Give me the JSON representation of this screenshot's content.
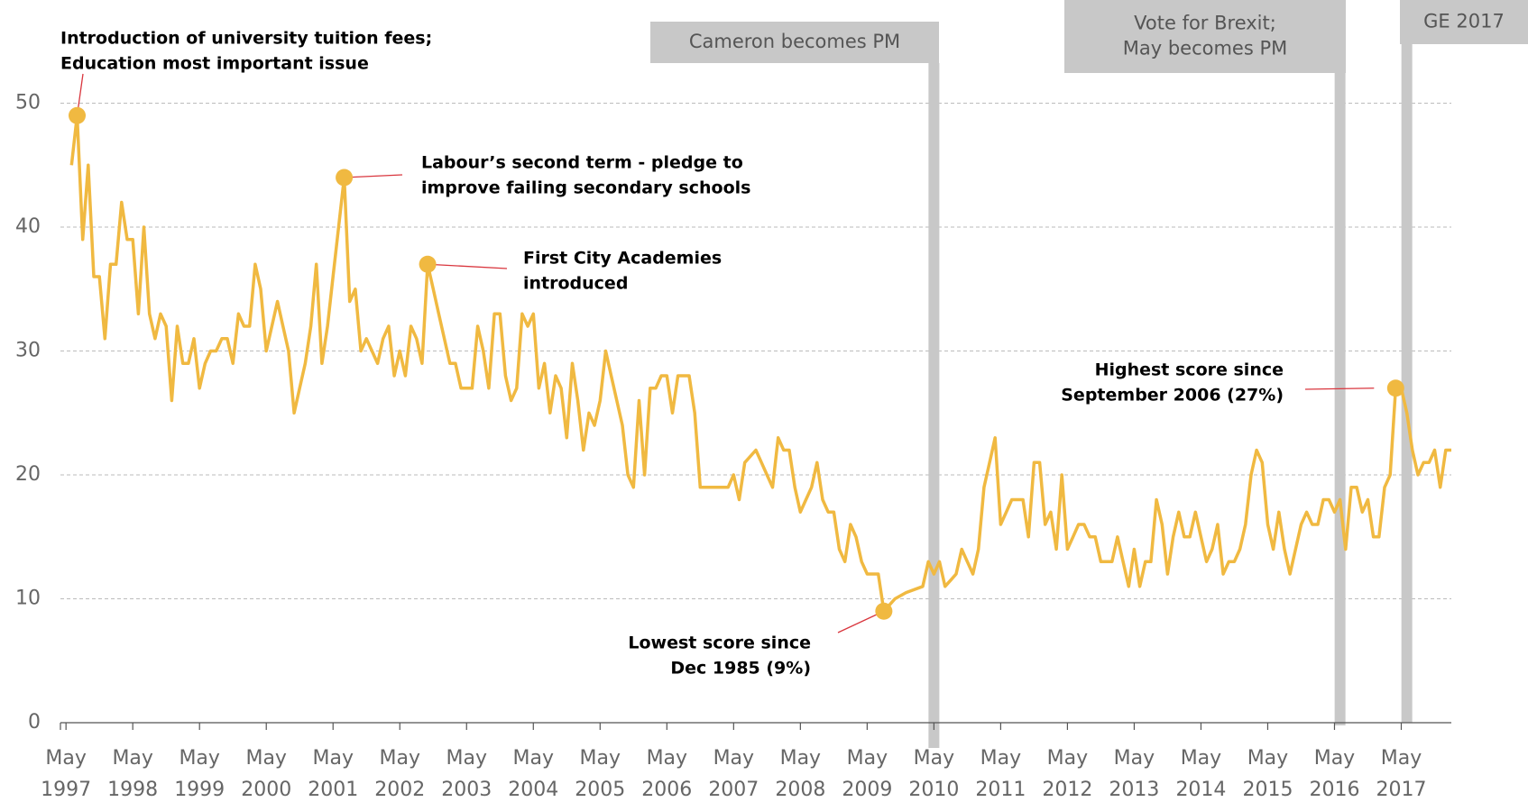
{
  "chart_data": {
    "type": "line",
    "color": "#f0b941",
    "xlim": [
      "1997-04",
      "2018-02"
    ],
    "ylim": [
      0,
      50
    ],
    "yticks": [
      0,
      10,
      20,
      30,
      40,
      50
    ],
    "grid": true,
    "xticks": [
      {
        "value": "1997-05",
        "label": [
          "May",
          "1997"
        ]
      },
      {
        "value": "1998-05",
        "label": [
          "May",
          "1998"
        ]
      },
      {
        "value": "1999-05",
        "label": [
          "May",
          "1999"
        ]
      },
      {
        "value": "2000-05",
        "label": [
          "May",
          "2000"
        ]
      },
      {
        "value": "2001-05",
        "label": [
          "May",
          "2001"
        ]
      },
      {
        "value": "2002-05",
        "label": [
          "May",
          "2002"
        ]
      },
      {
        "value": "2003-05",
        "label": [
          "May",
          "2003"
        ]
      },
      {
        "value": "2004-05",
        "label": [
          "May",
          "2004"
        ]
      },
      {
        "value": "2005-05",
        "label": [
          "May",
          "2005"
        ]
      },
      {
        "value": "2006-05",
        "label": [
          "May",
          "2006"
        ]
      },
      {
        "value": "2007-05",
        "label": [
          "May",
          "2007"
        ]
      },
      {
        "value": "2008-05",
        "label": [
          "May",
          "2008"
        ]
      },
      {
        "value": "2009-05",
        "label": [
          "May",
          "2009"
        ]
      },
      {
        "value": "2010-05",
        "label": [
          "May",
          "2010"
        ]
      },
      {
        "value": "2011-05",
        "label": [
          "May",
          "2011"
        ]
      },
      {
        "value": "2012-05",
        "label": [
          "May",
          "2012"
        ]
      },
      {
        "value": "2013-05",
        "label": [
          "May",
          "2013"
        ]
      },
      {
        "value": "2014-05",
        "label": [
          "May",
          "2014"
        ]
      },
      {
        "value": "2015-05",
        "label": [
          "May",
          "2015"
        ]
      },
      {
        "value": "2016-05",
        "label": [
          "May",
          "2016"
        ]
      },
      {
        "value": "2017-05",
        "label": [
          "May",
          "2017"
        ]
      }
    ],
    "x": [
      "1997-06",
      "1997-07",
      "1997-08",
      "1997-09",
      "1997-10",
      "1997-11",
      "1997-12",
      "1998-01",
      "1998-02",
      "1998-03",
      "1998-04",
      "1998-05",
      "1998-06",
      "1998-07",
      "1998-08",
      "1998-09",
      "1998-10",
      "1998-11",
      "1998-12",
      "1999-01",
      "1999-02",
      "1999-03",
      "1999-04",
      "1999-05",
      "1999-06",
      "1999-07",
      "1999-08",
      "1999-09",
      "1999-10",
      "1999-11",
      "1999-12",
      "2000-01",
      "2000-02",
      "2000-03",
      "2000-04",
      "2000-05",
      "2000-06",
      "2000-07",
      "2000-08",
      "2000-09",
      "2000-10",
      "2000-11",
      "2000-12",
      "2001-01",
      "2001-02",
      "2001-03",
      "2001-04",
      "2001-05",
      "2001-06",
      "2001-07",
      "2001-08",
      "2001-09",
      "2001-10",
      "2001-11",
      "2001-12",
      "2002-01",
      "2002-02",
      "2002-03",
      "2002-04",
      "2002-05",
      "2002-06",
      "2002-07",
      "2002-08",
      "2002-09",
      "2002-10",
      "2002-11",
      "2002-12",
      "2003-01",
      "2003-02",
      "2003-03",
      "2003-04",
      "2003-05",
      "2003-06",
      "2003-07",
      "2003-08",
      "2003-09",
      "2003-10",
      "2003-11",
      "2003-12",
      "2004-01",
      "2004-02",
      "2004-03",
      "2004-04",
      "2004-05",
      "2004-06",
      "2004-07",
      "2004-08",
      "2004-09",
      "2004-10",
      "2004-11",
      "2004-12",
      "2005-01",
      "2005-02",
      "2005-03",
      "2005-04",
      "2005-05",
      "2005-06",
      "2005-07",
      "2005-08",
      "2005-09",
      "2005-10",
      "2005-11",
      "2005-12",
      "2006-01",
      "2006-02",
      "2006-03",
      "2006-04",
      "2006-05",
      "2006-06",
      "2006-07",
      "2006-08",
      "2006-09",
      "2006-10",
      "2006-11",
      "2006-12",
      "2007-04",
      "2007-05",
      "2007-06",
      "2007-07",
      "2007-09",
      "2007-10",
      "2007-11",
      "2007-12",
      "2008-01",
      "2008-02",
      "2008-03",
      "2008-04",
      "2008-05",
      "2008-06",
      "2008-07",
      "2008-08",
      "2008-09",
      "2008-10",
      "2008-11",
      "2008-12",
      "2009-01",
      "2009-02",
      "2009-03",
      "2009-04",
      "2009-05",
      "2009-06",
      "2009-07",
      "2009-08",
      "2009-10",
      "2009-12",
      "2010-03",
      "2010-04",
      "2010-05",
      "2010-06",
      "2010-07",
      "2010-08",
      "2010-09",
      "2010-10",
      "2010-11",
      "2010-12",
      "2011-01",
      "2011-02",
      "2011-03",
      "2011-04",
      "2011-05",
      "2011-06",
      "2011-07",
      "2011-08",
      "2011-09",
      "2011-10",
      "2011-11",
      "2011-12",
      "2012-01",
      "2012-02",
      "2012-03",
      "2012-04",
      "2012-05",
      "2012-06",
      "2012-07",
      "2012-08",
      "2012-09",
      "2012-10",
      "2012-11",
      "2013-01",
      "2013-02",
      "2013-03",
      "2013-04",
      "2013-05",
      "2013-06",
      "2013-07",
      "2013-08",
      "2013-09",
      "2013-10",
      "2013-11",
      "2013-12",
      "2014-01",
      "2014-02",
      "2014-03",
      "2014-04",
      "2014-05",
      "2014-06",
      "2014-07",
      "2014-08",
      "2014-09",
      "2014-10",
      "2014-11",
      "2014-12",
      "2015-01",
      "2015-02",
      "2015-03",
      "2015-04",
      "2015-05",
      "2015-06",
      "2015-07",
      "2015-08",
      "2015-09",
      "2015-10",
      "2015-11",
      "2015-12",
      "2016-01",
      "2016-02",
      "2016-03",
      "2016-04",
      "2016-05",
      "2016-06",
      "2016-07",
      "2016-08",
      "2016-09",
      "2016-10",
      "2016-11",
      "2016-12",
      "2017-01",
      "2017-02",
      "2017-03",
      "2017-04",
      "2017-05",
      "2017-06",
      "2017-07",
      "2017-08",
      "2017-09",
      "2017-10",
      "2017-11",
      "2017-12",
      "2018-01",
      "2018-02"
    ],
    "values": [
      45,
      49,
      39,
      45,
      36,
      36,
      31,
      37,
      37,
      42,
      39,
      39,
      33,
      40,
      33,
      31,
      33,
      32,
      26,
      32,
      29,
      29,
      31,
      27,
      29,
      30,
      30,
      31,
      31,
      29,
      33,
      32,
      32,
      37,
      35,
      30,
      32,
      34,
      32,
      30,
      25,
      27,
      29,
      32,
      37,
      29,
      32,
      36,
      40,
      44,
      34,
      35,
      30,
      31,
      30,
      29,
      31,
      32,
      28,
      30,
      28,
      32,
      31,
      29,
      37,
      35,
      33,
      31,
      29,
      29,
      27,
      27,
      27,
      32,
      30,
      27,
      33,
      33,
      28,
      26,
      27,
      33,
      32,
      33,
      27,
      29,
      25,
      28,
      27,
      23,
      29,
      26,
      22,
      25,
      24,
      26,
      30,
      28,
      26,
      24,
      20,
      19,
      26,
      20,
      27,
      27,
      28,
      28,
      25,
      28,
      28,
      28,
      25,
      19,
      19,
      19,
      20,
      18,
      21,
      22,
      21,
      20,
      19,
      23,
      22,
      22,
      19,
      17,
      18,
      19,
      21,
      18,
      17,
      17,
      14,
      13,
      16,
      15,
      13,
      12,
      12,
      12,
      9,
      10,
      10.5,
      11,
      13,
      12,
      13,
      11,
      11.5,
      12,
      14,
      13,
      12,
      14,
      19,
      21,
      23,
      16,
      17,
      18,
      18,
      18,
      15,
      21,
      21,
      16,
      17,
      14,
      20,
      14,
      15,
      16,
      16,
      15,
      15,
      13,
      13,
      15,
      13,
      11,
      14,
      11,
      13,
      13,
      18,
      16,
      12,
      15,
      17,
      15,
      15,
      17,
      15,
      13,
      14,
      16,
      12,
      13,
      13,
      14,
      16,
      20,
      22,
      21,
      16,
      14,
      17,
      14,
      12,
      14,
      16,
      17,
      16,
      16,
      18,
      18,
      17,
      18,
      14,
      19,
      19,
      17,
      18,
      15,
      15,
      19,
      20,
      27,
      27,
      25,
      22,
      20,
      21,
      21,
      22,
      19,
      22,
      22
    ],
    "events": [
      {
        "x": "2010-05",
        "label": [
          "Cameron becomes PM"
        ]
      },
      {
        "x": "2016-06",
        "label": [
          "Vote for Brexit;",
          "May becomes PM"
        ]
      },
      {
        "x": "2017-06",
        "label": [
          "GE 2017"
        ]
      }
    ],
    "annotations": [
      {
        "x": "1997-07",
        "text": [
          "Introduction of university tuition fees;",
          "Education most important issue"
        ]
      },
      {
        "x": "2001-07",
        "text": [
          "Labour’s second term - pledge to",
          "improve failing secondary schools"
        ]
      },
      {
        "x": "2002-10",
        "text": [
          "First City Academies",
          "introduced"
        ]
      },
      {
        "x": "2009-08",
        "text": [
          "Lowest score since",
          "Dec 1985 (9%)"
        ]
      },
      {
        "x": "2017-04",
        "text": [
          "Highest score since",
          "September 2006 (27%)"
        ]
      }
    ]
  }
}
